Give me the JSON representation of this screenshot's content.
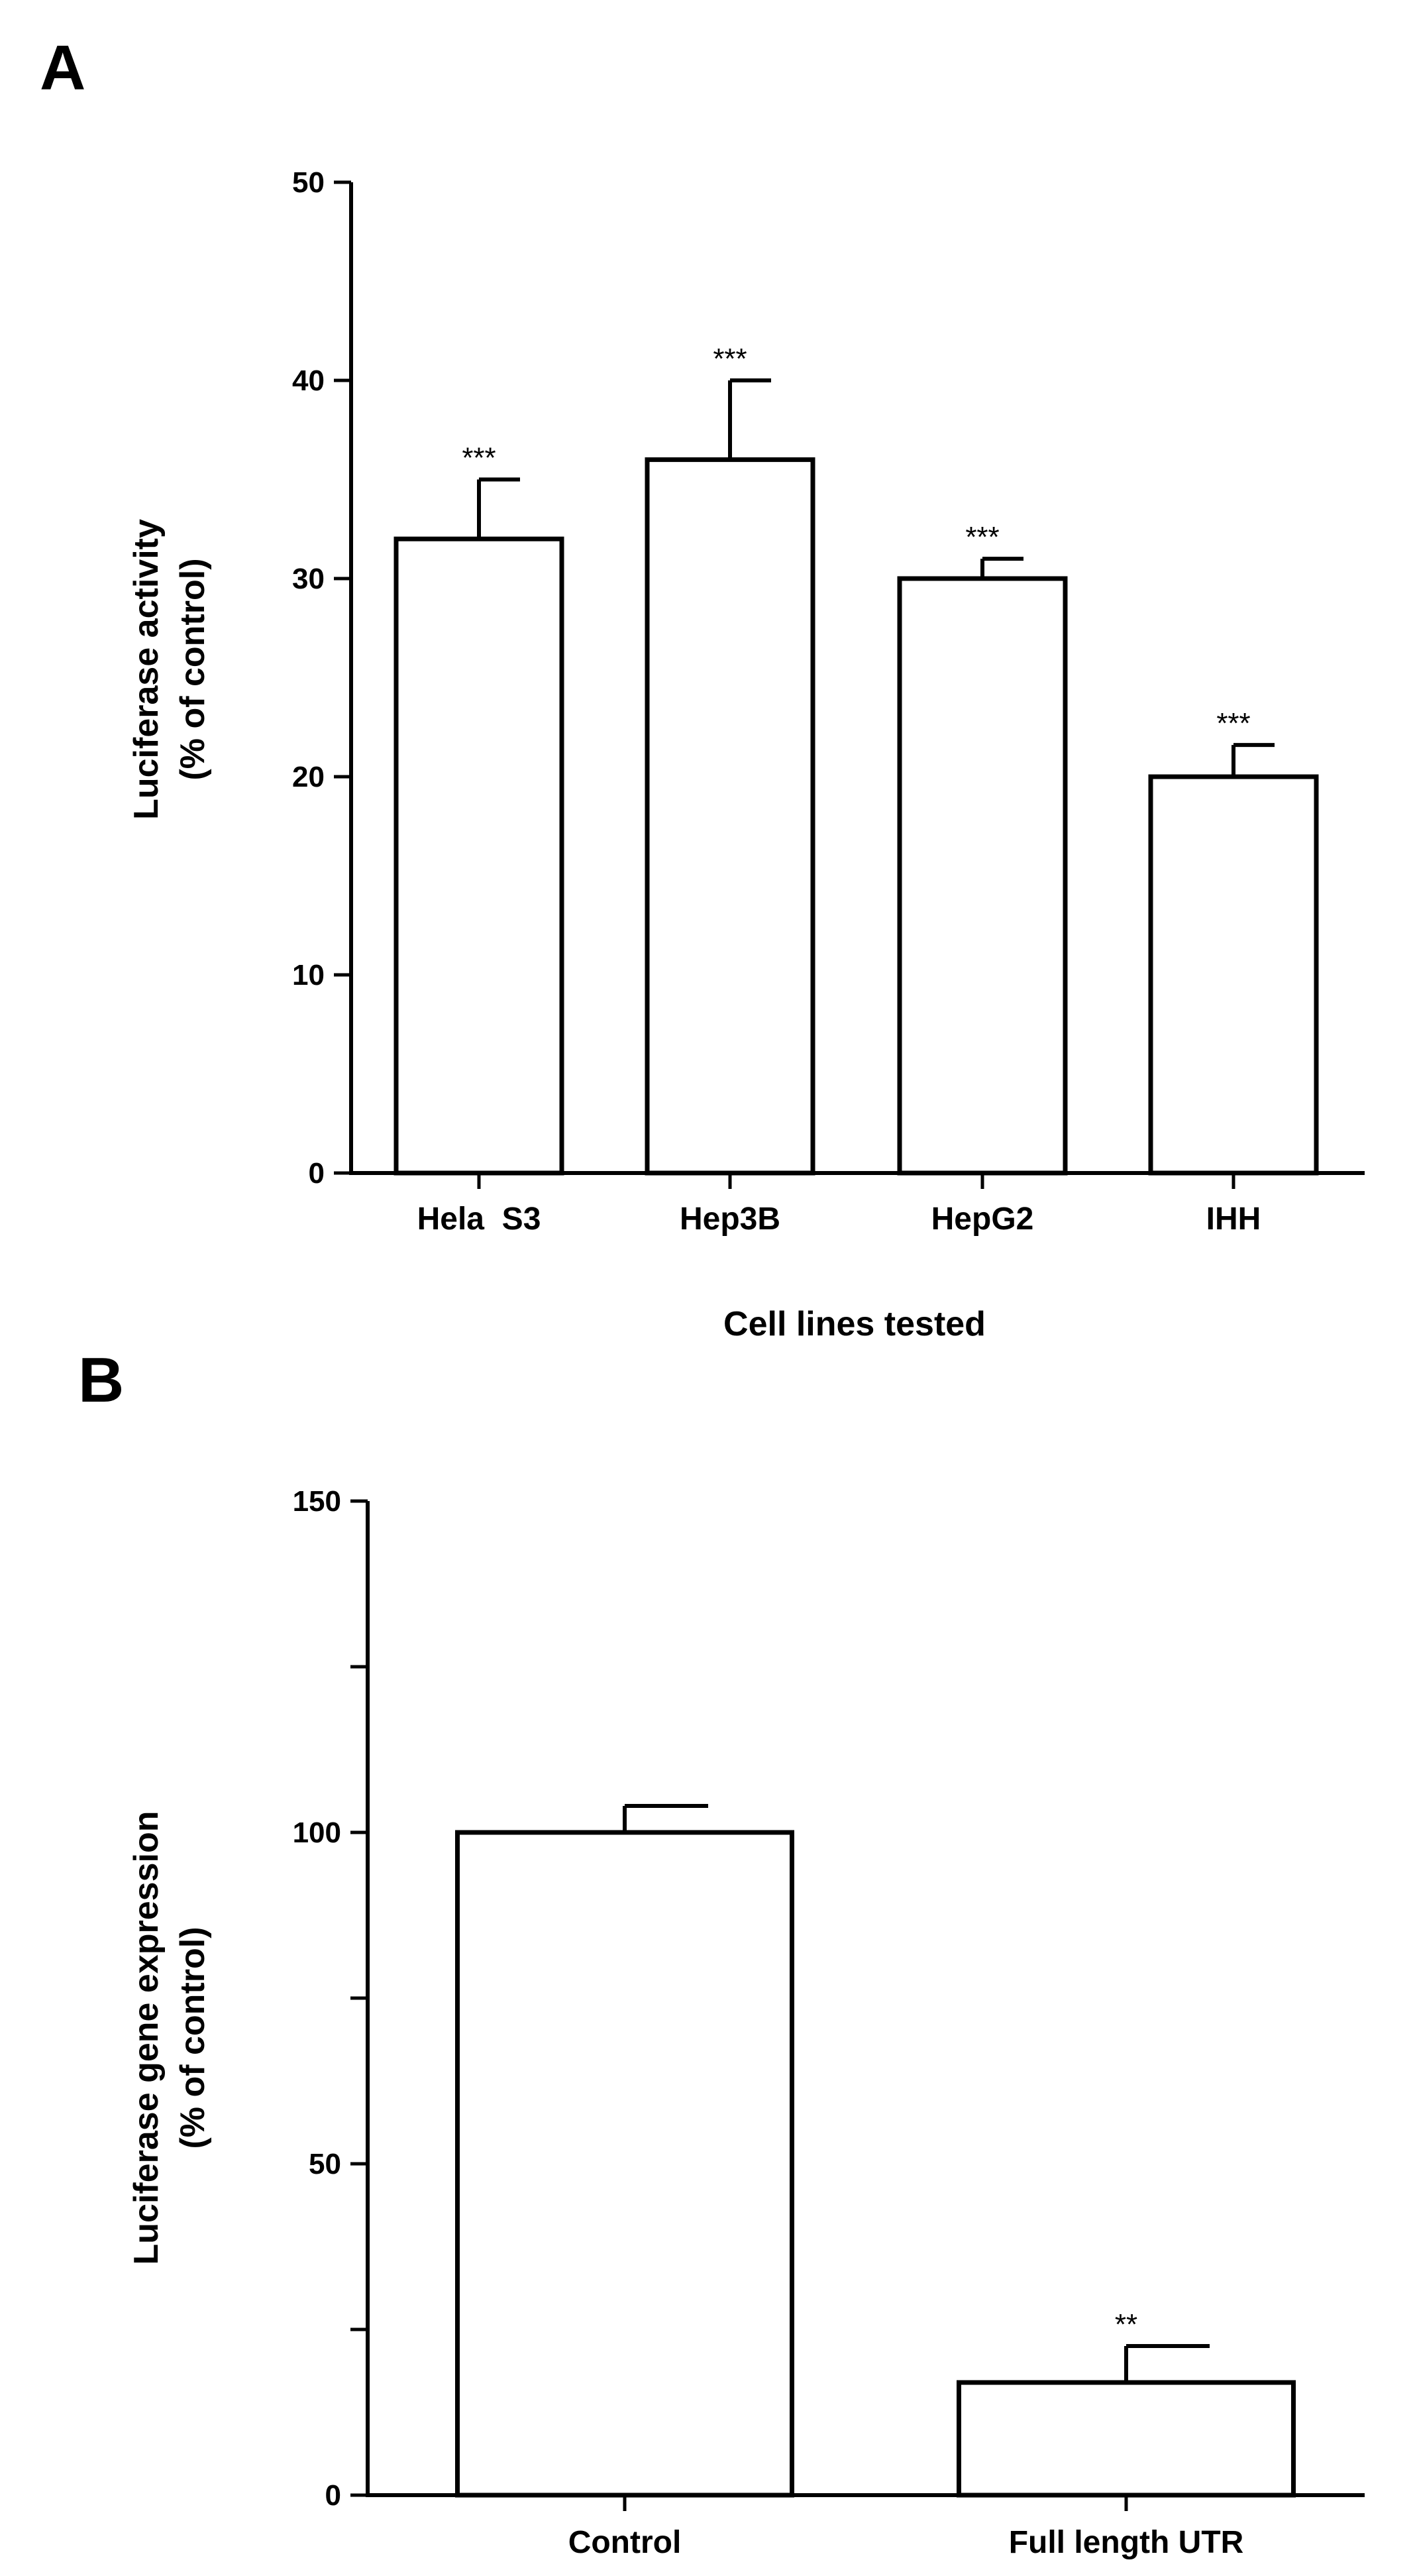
{
  "chart_data": [
    {
      "panel": "A",
      "type": "bar",
      "title": "",
      "xlabel": "Cell lines tested",
      "ylabel_line1": "Luciferase activity",
      "ylabel_line2": "(% of control)",
      "ylim": [
        0,
        50
      ],
      "yticks": [
        0,
        10,
        20,
        30,
        40,
        50
      ],
      "yticks_labels": [
        "0",
        "10",
        "20",
        "30",
        "40",
        "50"
      ],
      "categories": [
        "Hela  S3",
        "Hep3B",
        "HepG2",
        "IHH"
      ],
      "values": [
        32,
        36,
        30,
        20
      ],
      "errors": [
        3,
        4,
        1,
        1.6
      ],
      "significance": [
        "***",
        "***",
        "***",
        "***"
      ],
      "grid": false
    },
    {
      "panel": "B",
      "type": "bar",
      "title": "",
      "xlabel": "",
      "ylabel_line1": "Luciferase gene expression",
      "ylabel_line2": "(% of control)",
      "ylim": [
        0,
        150
      ],
      "yticks": [
        0,
        25,
        50,
        75,
        100,
        125,
        150
      ],
      "yticks_labels": [
        "0",
        "",
        "50",
        "",
        "100",
        "",
        "150"
      ],
      "categories": [
        "Control",
        "Full length UTR"
      ],
      "values": [
        100,
        17
      ],
      "errors": [
        4,
        5.5
      ],
      "significance": [
        "",
        "**"
      ],
      "grid": false
    }
  ]
}
